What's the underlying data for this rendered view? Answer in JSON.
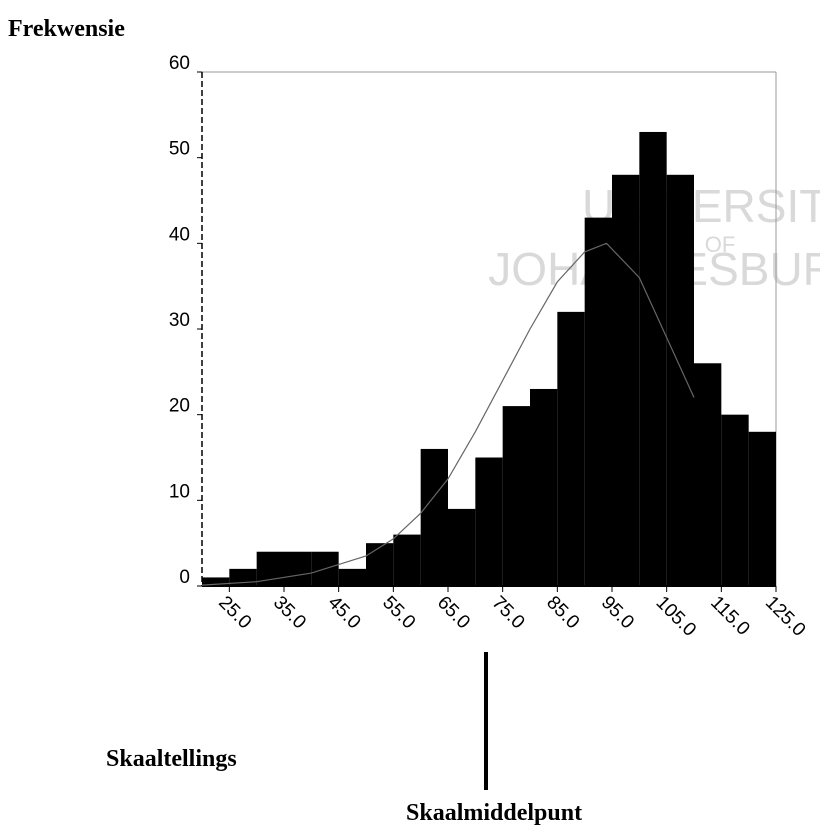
{
  "chart_data": {
    "type": "histogram",
    "y_label": "Frekwensie",
    "x_label": "Skaaltellings",
    "annotation": "Skaalmiddelpunt",
    "watermark": [
      "UNIVERSITY",
      "OF",
      "JOHANNESBURG"
    ],
    "bins": [
      20,
      25,
      30,
      35,
      40,
      45,
      50,
      55,
      60,
      65,
      70,
      75,
      80,
      85,
      90,
      95,
      100,
      105,
      110,
      115,
      120,
      125
    ],
    "values": [
      1,
      2,
      4,
      4,
      4,
      2,
      5,
      6,
      16,
      9,
      15,
      21,
      23,
      32,
      43,
      48,
      53,
      48,
      26,
      20,
      18
    ],
    "color": "#000000",
    "curve": {
      "x": [
        20,
        30,
        40,
        50,
        55,
        60,
        65,
        70,
        75,
        80,
        85,
        90,
        94,
        100,
        105,
        110
      ],
      "values": [
        0.1,
        0.5,
        1.5,
        3.5,
        5.5,
        8.5,
        12.5,
        18,
        24,
        30,
        35.5,
        39,
        40,
        36,
        29,
        22
      ],
      "color": "#000000"
    },
    "xlim": [
      20,
      125
    ],
    "ylim": [
      0,
      60
    ],
    "xticks": [
      {
        "value": 25,
        "label": "25.0"
      },
      {
        "value": 35,
        "label": "35.0"
      },
      {
        "value": 45,
        "label": "45.0"
      },
      {
        "value": 55,
        "label": "55.0"
      },
      {
        "value": 65,
        "label": "65.0"
      },
      {
        "value": 75,
        "label": "75.0"
      },
      {
        "value": 85,
        "label": "85.0"
      },
      {
        "value": 95,
        "label": "95.0"
      },
      {
        "value": 105,
        "label": "105.0"
      },
      {
        "value": 115,
        "label": "115.0"
      },
      {
        "value": 125,
        "label": "125.0"
      }
    ],
    "yticks": [
      0,
      10,
      20,
      30,
      40,
      50,
      60
    ]
  }
}
